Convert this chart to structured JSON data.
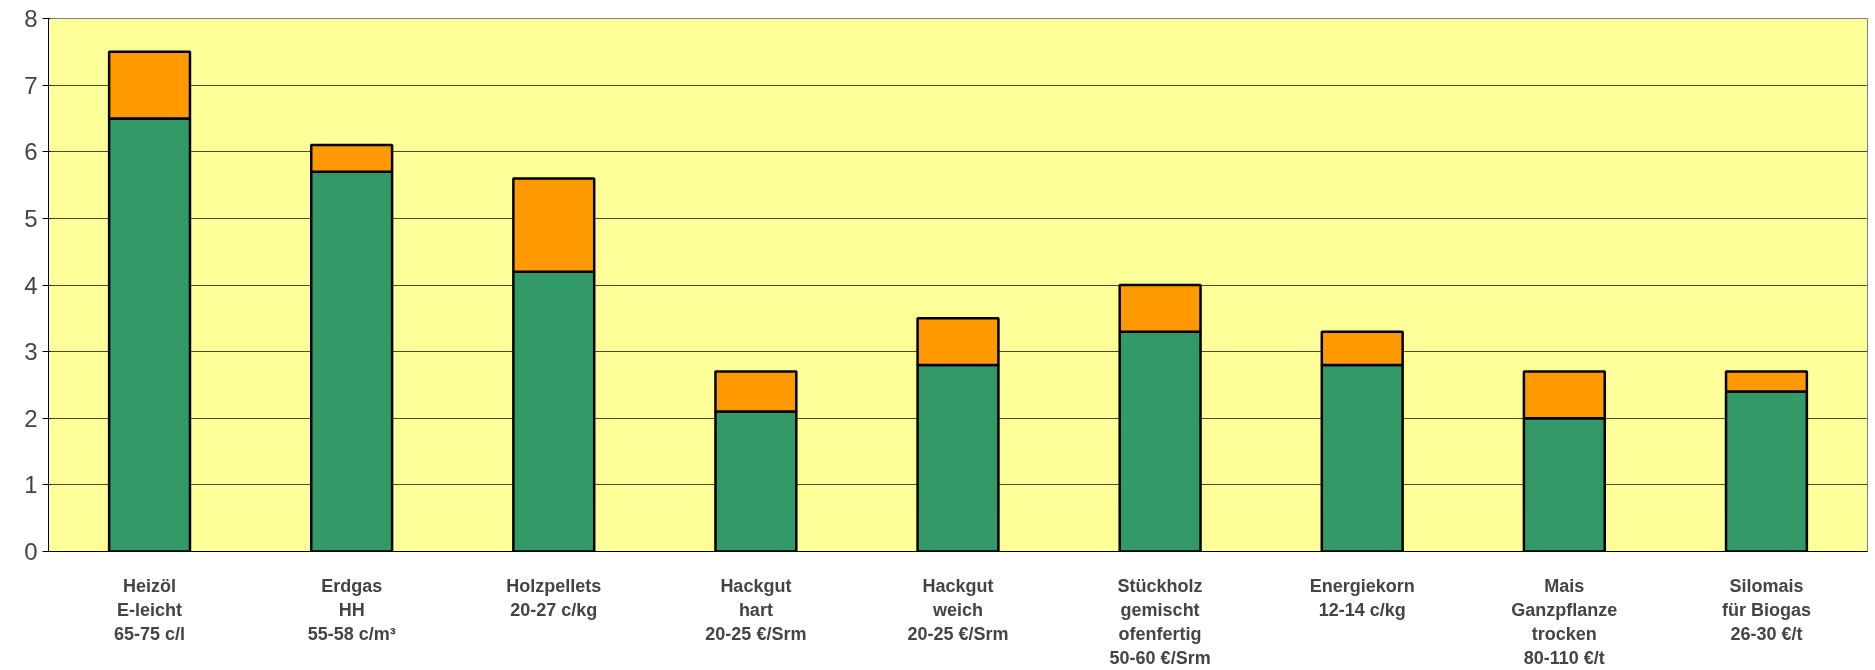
{
  "chart_data": {
    "type": "bar",
    "stacked": true,
    "categories": [
      "Heizöl\nE-leicht\n65-75 c/l",
      "Erdgas\nHH\n55-58 c/m³",
      "Holzpellets\n20-27 c/kg",
      "Hackgut\nhart\n20-25 €/Srm",
      "Hackgut\nweich\n20-25 €/Srm",
      "Stückholz\ngemischt\nofenfertig\n50-60 €/Srm",
      "Energiekorn\n12-14 c/kg",
      "Mais\nGanzpflanze\ntrocken\n80-110 €/t",
      "Silomais\nfür Biogas\n26-30 €/t"
    ],
    "series": [
      {
        "color": "#339966",
        "values": [
          6.5,
          5.7,
          4.2,
          2.1,
          2.8,
          3.3,
          2.8,
          2.0,
          2.4
        ]
      },
      {
        "color": "#ff9900",
        "values": [
          1.0,
          0.4,
          1.4,
          0.6,
          0.7,
          0.7,
          0.5,
          0.7,
          0.3
        ]
      }
    ],
    "ylim": [
      0,
      8
    ],
    "yticks": [
      0,
      1,
      2,
      3,
      4,
      5,
      6,
      7,
      8
    ],
    "grid": "y"
  }
}
